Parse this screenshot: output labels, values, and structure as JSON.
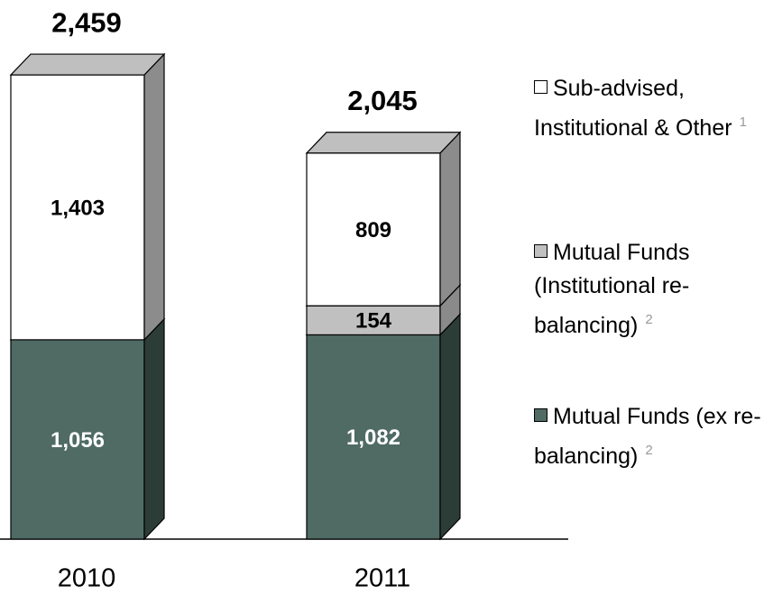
{
  "chart_data": {
    "type": "stacked-bar-3d",
    "categories": [
      "2010",
      "2011"
    ],
    "series": [
      {
        "name": "Mutual Funds (ex re-balancing)",
        "note": "2",
        "color": "#4f6b63",
        "side_color": "#2c3c37",
        "label_color": "#ffffff",
        "values": [
          1056,
          1082
        ],
        "value_labels": [
          "1,056",
          "1,082"
        ]
      },
      {
        "name": "Mutual Funds (Institutional re-balancing)",
        "note": "2",
        "color": "#c0c0c0",
        "side_color": "#8a8a8a",
        "label_color": "#000000",
        "values": [
          null,
          154
        ],
        "value_labels": [
          null,
          "154"
        ]
      },
      {
        "name": "Sub-advised, Institutional & Other",
        "note": "1",
        "color": "#ffffff",
        "side_color": "#8c8c8c",
        "label_color": "#000000",
        "values": [
          1403,
          809
        ],
        "value_labels": [
          "1,403",
          "809"
        ]
      }
    ],
    "totals": [
      2459,
      2045
    ],
    "total_labels": [
      "2,459",
      "2,045"
    ]
  }
}
